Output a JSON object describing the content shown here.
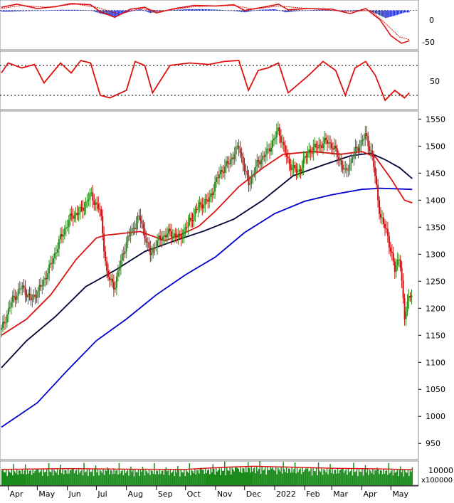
{
  "colors": {
    "price_up": "#2e8b1e",
    "price_down": "#cc1111",
    "ma_short": "#dd1111",
    "ma_mid": "#000033",
    "ma_long": "#0000cc",
    "volume": "#1a8a1a",
    "volume_ma": "#dd1111",
    "macd_hist": "#1f2fd0",
    "macd_line": "#dd1111",
    "stoch": "#dd1111",
    "dotted": "#000000"
  },
  "chart_data": [
    {
      "type": "bar",
      "panel": "macd",
      "y_ticks": [
        "0",
        "-50"
      ],
      "ylim": [
        -60,
        12
      ],
      "histogram": [
        {
          "x": "2021-04-01",
          "value": -2
        },
        {
          "x": "2021-04-20",
          "value": -1
        },
        {
          "x": "2021-05-10",
          "value": 0
        },
        {
          "x": "2021-05-25",
          "value": 1
        },
        {
          "x": "2021-06-10",
          "value": 1
        },
        {
          "x": "2021-06-25",
          "value": 0
        },
        {
          "x": "2021-07-05",
          "value": -5
        },
        {
          "x": "2021-07-20",
          "value": -10
        },
        {
          "x": "2021-08-01",
          "value": -3
        },
        {
          "x": "2021-08-15",
          "value": 2
        },
        {
          "x": "2021-08-25",
          "value": -4
        },
        {
          "x": "2021-09-05",
          "value": -1
        },
        {
          "x": "2021-09-20",
          "value": 1
        },
        {
          "x": "2021-10-05",
          "value": 2
        },
        {
          "x": "2021-10-20",
          "value": 2
        },
        {
          "x": "2021-11-05",
          "value": 1
        },
        {
          "x": "2021-11-20",
          "value": -1
        },
        {
          "x": "2021-12-01",
          "value": -3
        },
        {
          "x": "2021-12-15",
          "value": 1
        },
        {
          "x": "2022-01-01",
          "value": 2
        },
        {
          "x": "2022-01-12",
          "value": -3
        },
        {
          "x": "2022-01-25",
          "value": -1
        },
        {
          "x": "2022-02-10",
          "value": 1
        },
        {
          "x": "2022-02-25",
          "value": 1
        },
        {
          "x": "2022-03-10",
          "value": -2
        },
        {
          "x": "2022-03-25",
          "value": 1
        },
        {
          "x": "2022-04-05",
          "value": 0
        },
        {
          "x": "2022-04-15",
          "value": -5
        },
        {
          "x": "2022-04-25",
          "value": -12
        },
        {
          "x": "2022-05-05",
          "value": -8
        },
        {
          "x": "2022-05-15",
          "value": -3
        }
      ],
      "macd": [
        {
          "x": "2021-03-25",
          "value": 5
        },
        {
          "x": "2021-04-10",
          "value": 10
        },
        {
          "x": "2021-05-01",
          "value": 3
        },
        {
          "x": "2021-05-20",
          "value": 6
        },
        {
          "x": "2021-06-05",
          "value": 11
        },
        {
          "x": "2021-06-25",
          "value": 9
        },
        {
          "x": "2021-07-05",
          "value": -2
        },
        {
          "x": "2021-07-20",
          "value": -11
        },
        {
          "x": "2021-08-05",
          "value": 2
        },
        {
          "x": "2021-08-20",
          "value": 5
        },
        {
          "x": "2021-09-01",
          "value": -4
        },
        {
          "x": "2021-09-20",
          "value": 3
        },
        {
          "x": "2021-10-10",
          "value": 8
        },
        {
          "x": "2021-11-01",
          "value": 7
        },
        {
          "x": "2021-11-20",
          "value": 9
        },
        {
          "x": "2021-12-01",
          "value": 0
        },
        {
          "x": "2021-12-20",
          "value": 5
        },
        {
          "x": "2022-01-05",
          "value": 10
        },
        {
          "x": "2022-01-15",
          "value": 1
        },
        {
          "x": "2022-02-05",
          "value": 3
        },
        {
          "x": "2022-03-01",
          "value": 2
        },
        {
          "x": "2022-03-20",
          "value": -5
        },
        {
          "x": "2022-04-05",
          "value": 3
        },
        {
          "x": "2022-04-20",
          "value": -15
        },
        {
          "x": "2022-05-01",
          "value": -40
        },
        {
          "x": "2022-05-12",
          "value": -52
        },
        {
          "x": "2022-05-20",
          "value": -48
        }
      ],
      "signal": [
        {
          "x": "2021-03-25",
          "value": 3
        },
        {
          "x": "2021-04-15",
          "value": 8
        },
        {
          "x": "2021-05-10",
          "value": 5
        },
        {
          "x": "2021-06-10",
          "value": 10
        },
        {
          "x": "2021-07-01",
          "value": 5
        },
        {
          "x": "2021-07-25",
          "value": -6
        },
        {
          "x": "2021-08-15",
          "value": 3
        },
        {
          "x": "2021-09-05",
          "value": -1
        },
        {
          "x": "2021-10-10",
          "value": 6
        },
        {
          "x": "2021-11-20",
          "value": 8
        },
        {
          "x": "2021-12-10",
          "value": 2
        },
        {
          "x": "2022-01-05",
          "value": 7
        },
        {
          "x": "2022-02-05",
          "value": 3
        },
        {
          "x": "2022-03-20",
          "value": -2
        },
        {
          "x": "2022-04-10",
          "value": 0
        },
        {
          "x": "2022-04-25",
          "value": -20
        },
        {
          "x": "2022-05-10",
          "value": -42
        },
        {
          "x": "2022-05-20",
          "value": -46
        }
      ]
    },
    {
      "type": "line",
      "panel": "stochastic",
      "y_ticks": [
        "50"
      ],
      "ylim": [
        0,
        100
      ],
      "levels": [
        80,
        20
      ],
      "values": [
        {
          "x": "2021-03-25",
          "value": 65
        },
        {
          "x": "2021-04-01",
          "value": 85
        },
        {
          "x": "2021-04-15",
          "value": 75
        },
        {
          "x": "2021-04-28",
          "value": 82
        },
        {
          "x": "2021-05-08",
          "value": 45
        },
        {
          "x": "2021-05-25",
          "value": 85
        },
        {
          "x": "2021-06-05",
          "value": 65
        },
        {
          "x": "2021-06-15",
          "value": 90
        },
        {
          "x": "2021-06-25",
          "value": 85
        },
        {
          "x": "2021-07-05",
          "value": 20
        },
        {
          "x": "2021-07-15",
          "value": 15
        },
        {
          "x": "2021-08-01",
          "value": 30
        },
        {
          "x": "2021-08-10",
          "value": 88
        },
        {
          "x": "2021-08-20",
          "value": 80
        },
        {
          "x": "2021-08-28",
          "value": 25
        },
        {
          "x": "2021-09-15",
          "value": 80
        },
        {
          "x": "2021-10-05",
          "value": 85
        },
        {
          "x": "2021-10-25",
          "value": 82
        },
        {
          "x": "2021-11-10",
          "value": 88
        },
        {
          "x": "2021-11-25",
          "value": 90
        },
        {
          "x": "2021-12-05",
          "value": 30
        },
        {
          "x": "2021-12-15",
          "value": 70
        },
        {
          "x": "2021-12-25",
          "value": 75
        },
        {
          "x": "2022-01-05",
          "value": 85
        },
        {
          "x": "2022-01-15",
          "value": 25
        },
        {
          "x": "2022-02-05",
          "value": 60
        },
        {
          "x": "2022-02-20",
          "value": 88
        },
        {
          "x": "2022-03-05",
          "value": 70
        },
        {
          "x": "2022-03-15",
          "value": 20
        },
        {
          "x": "2022-03-25",
          "value": 75
        },
        {
          "x": "2022-04-05",
          "value": 88
        },
        {
          "x": "2022-04-15",
          "value": 60
        },
        {
          "x": "2022-04-25",
          "value": 10
        },
        {
          "x": "2022-05-05",
          "value": 30
        },
        {
          "x": "2022-05-15",
          "value": 15
        },
        {
          "x": "2022-05-20",
          "value": 25
        }
      ]
    },
    {
      "type": "line",
      "panel": "price",
      "y_ticks": [
        "950",
        "1000",
        "1050",
        "1100",
        "1150",
        "1200",
        "1250",
        "1300",
        "1350",
        "1400",
        "1450",
        "1500",
        "1550"
      ],
      "ylim": [
        920,
        1565
      ],
      "x_ticks": [
        "Apr",
        "May",
        "Jun",
        "Jul",
        "Aug",
        "Sep",
        "Oct",
        "Nov",
        "Dec",
        "2022",
        "Feb",
        "Mar",
        "Apr",
        "May"
      ],
      "price": [
        {
          "x": "2021-03-25",
          "value": 1160
        },
        {
          "x": "2021-04-05",
          "value": 1215
        },
        {
          "x": "2021-04-15",
          "value": 1240
        },
        {
          "x": "2021-04-25",
          "value": 1215
        },
        {
          "x": "2021-05-05",
          "value": 1240
        },
        {
          "x": "2021-05-15",
          "value": 1280
        },
        {
          "x": "2021-05-25",
          "value": 1330
        },
        {
          "x": "2021-06-05",
          "value": 1370
        },
        {
          "x": "2021-06-15",
          "value": 1380
        },
        {
          "x": "2021-06-25",
          "value": 1410
        },
        {
          "x": "2021-07-05",
          "value": 1380
        },
        {
          "x": "2021-07-12",
          "value": 1260
        },
        {
          "x": "2021-07-20",
          "value": 1240
        },
        {
          "x": "2021-07-28",
          "value": 1300
        },
        {
          "x": "2021-08-05",
          "value": 1340
        },
        {
          "x": "2021-08-15",
          "value": 1370
        },
        {
          "x": "2021-08-25",
          "value": 1300
        },
        {
          "x": "2021-09-05",
          "value": 1330
        },
        {
          "x": "2021-09-15",
          "value": 1340
        },
        {
          "x": "2021-09-25",
          "value": 1330
        },
        {
          "x": "2021-10-05",
          "value": 1360
        },
        {
          "x": "2021-10-15",
          "value": 1390
        },
        {
          "x": "2021-10-25",
          "value": 1400
        },
        {
          "x": "2021-11-05",
          "value": 1450
        },
        {
          "x": "2021-11-15",
          "value": 1470
        },
        {
          "x": "2021-11-25",
          "value": 1500
        },
        {
          "x": "2021-12-05",
          "value": 1430
        },
        {
          "x": "2021-12-15",
          "value": 1470
        },
        {
          "x": "2021-12-25",
          "value": 1490
        },
        {
          "x": "2022-01-05",
          "value": 1530
        },
        {
          "x": "2022-01-15",
          "value": 1470
        },
        {
          "x": "2022-01-25",
          "value": 1450
        },
        {
          "x": "2022-02-05",
          "value": 1490
        },
        {
          "x": "2022-02-15",
          "value": 1500
        },
        {
          "x": "2022-02-25",
          "value": 1510
        },
        {
          "x": "2022-03-05",
          "value": 1490
        },
        {
          "x": "2022-03-15",
          "value": 1450
        },
        {
          "x": "2022-03-25",
          "value": 1490
        },
        {
          "x": "2022-04-05",
          "value": 1520
        },
        {
          "x": "2022-04-12",
          "value": 1480
        },
        {
          "x": "2022-04-20",
          "value": 1370
        },
        {
          "x": "2022-04-27",
          "value": 1340
        },
        {
          "x": "2022-05-05",
          "value": 1270
        },
        {
          "x": "2022-05-10",
          "value": 1300
        },
        {
          "x": "2022-05-15",
          "value": 1180
        },
        {
          "x": "2022-05-20",
          "value": 1230
        },
        {
          "x": "2022-05-23",
          "value": 1220
        }
      ],
      "ma_short": [
        {
          "x": "2021-03-25",
          "value": 1150
        },
        {
          "x": "2021-04-20",
          "value": 1180
        },
        {
          "x": "2021-05-15",
          "value": 1225
        },
        {
          "x": "2021-06-10",
          "value": 1290
        },
        {
          "x": "2021-07-01",
          "value": 1330
        },
        {
          "x": "2021-07-10",
          "value": 1335
        },
        {
          "x": "2021-08-15",
          "value": 1342
        },
        {
          "x": "2021-09-10",
          "value": 1325
        },
        {
          "x": "2021-09-25",
          "value": 1335
        },
        {
          "x": "2021-10-15",
          "value": 1352
        },
        {
          "x": "2021-11-01",
          "value": 1380
        },
        {
          "x": "2021-11-25",
          "value": 1425
        },
        {
          "x": "2021-12-20",
          "value": 1460
        },
        {
          "x": "2022-01-10",
          "value": 1485
        },
        {
          "x": "2022-02-10",
          "value": 1490
        },
        {
          "x": "2022-03-10",
          "value": 1485
        },
        {
          "x": "2022-04-01",
          "value": 1490
        },
        {
          "x": "2022-04-15",
          "value": 1480
        },
        {
          "x": "2022-05-01",
          "value": 1440
        },
        {
          "x": "2022-05-15",
          "value": 1400
        },
        {
          "x": "2022-05-23",
          "value": 1395
        }
      ],
      "ma_mid": [
        {
          "x": "2021-03-25",
          "value": 1090
        },
        {
          "x": "2021-04-20",
          "value": 1140
        },
        {
          "x": "2021-05-20",
          "value": 1185
        },
        {
          "x": "2021-06-20",
          "value": 1240
        },
        {
          "x": "2021-07-20",
          "value": 1270
        },
        {
          "x": "2021-08-20",
          "value": 1305
        },
        {
          "x": "2021-09-20",
          "value": 1325
        },
        {
          "x": "2021-10-20",
          "value": 1343
        },
        {
          "x": "2021-11-20",
          "value": 1365
        },
        {
          "x": "2021-12-20",
          "value": 1400
        },
        {
          "x": "2022-01-20",
          "value": 1445
        },
        {
          "x": "2022-02-20",
          "value": 1465
        },
        {
          "x": "2022-03-20",
          "value": 1482
        },
        {
          "x": "2022-04-10",
          "value": 1487
        },
        {
          "x": "2022-04-25",
          "value": 1475
        },
        {
          "x": "2022-05-10",
          "value": 1460
        },
        {
          "x": "2022-05-23",
          "value": 1440
        }
      ],
      "ma_long": [
        {
          "x": "2021-03-25",
          "value": 980
        },
        {
          "x": "2021-05-01",
          "value": 1025
        },
        {
          "x": "2021-06-01",
          "value": 1085
        },
        {
          "x": "2021-07-01",
          "value": 1140
        },
        {
          "x": "2021-08-01",
          "value": 1180
        },
        {
          "x": "2021-09-01",
          "value": 1225
        },
        {
          "x": "2021-10-01",
          "value": 1262
        },
        {
          "x": "2021-11-01",
          "value": 1295
        },
        {
          "x": "2021-12-01",
          "value": 1340
        },
        {
          "x": "2022-01-01",
          "value": 1375
        },
        {
          "x": "2022-02-01",
          "value": 1398
        },
        {
          "x": "2022-03-01",
          "value": 1410
        },
        {
          "x": "2022-04-01",
          "value": 1420
        },
        {
          "x": "2022-04-20",
          "value": 1422
        },
        {
          "x": "2022-05-23",
          "value": 1420
        }
      ]
    },
    {
      "type": "bar",
      "panel": "volume",
      "y_ticks": [
        "10000"
      ],
      "unit_label": "x100000",
      "ylim": [
        0,
        14000
      ],
      "volume_ma": [
        {
          "x": "2021-03-25",
          "value": 9200
        },
        {
          "x": "2021-06-01",
          "value": 9600
        },
        {
          "x": "2021-08-01",
          "value": 9300
        },
        {
          "x": "2021-10-01",
          "value": 9200
        },
        {
          "x": "2021-11-15",
          "value": 10500
        },
        {
          "x": "2021-12-10",
          "value": 11000
        },
        {
          "x": "2022-01-15",
          "value": 10500
        },
        {
          "x": "2022-03-01",
          "value": 9800
        },
        {
          "x": "2022-04-15",
          "value": 9500
        },
        {
          "x": "2022-05-23",
          "value": 9000
        }
      ]
    }
  ]
}
